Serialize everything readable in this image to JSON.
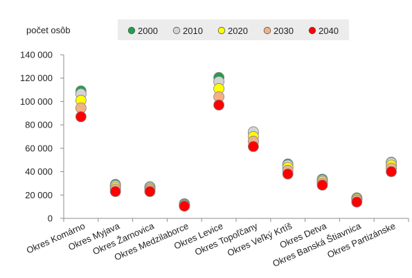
{
  "chart_data": {
    "type": "scatter",
    "title": "",
    "xlabel": "",
    "ylabel": "počet osôb",
    "ylim": [
      0,
      140000
    ],
    "yticks": [
      0,
      20000,
      40000,
      60000,
      80000,
      100000,
      120000,
      140000
    ],
    "ytick_labels": [
      "0",
      "20 000",
      "40 000",
      "60 000",
      "80 000",
      "100 000",
      "120 000",
      "140 000"
    ],
    "grid": false,
    "legend_placement": "top",
    "categories": [
      "Okres Komárno",
      "Okres Myjava",
      "Okres Žarnovica",
      "Okres Medzilaborce",
      "Okres Levice",
      "Okres Topoľčany",
      "Okres Veľký Krtíš",
      "Okres Detva",
      "Okres Banská Štiavnica",
      "Okres Partizánske"
    ],
    "series": [
      {
        "name": "2000",
        "color": "#1fa04a",
        "values": [
          109000,
          29000,
          27000,
          12500,
          120500,
          73500,
          46500,
          33500,
          17500,
          48000
        ]
      },
      {
        "name": "2010",
        "color": "#d4d4d4",
        "values": [
          106500,
          28000,
          26500,
          12000,
          117000,
          74000,
          45500,
          32500,
          17000,
          47500
        ]
      },
      {
        "name": "2020",
        "color": "#ffff00",
        "values": [
          101000,
          26500,
          25500,
          11500,
          111000,
          70000,
          43500,
          31500,
          16500,
          45500
        ]
      },
      {
        "name": "2030",
        "color": "#f4b183",
        "values": [
          94500,
          25000,
          24500,
          11000,
          104000,
          66000,
          41000,
          30000,
          15500,
          43000
        ]
      },
      {
        "name": "2040",
        "color": "#ff0000",
        "values": [
          87000,
          23000,
          23000,
          10500,
          97000,
          61500,
          38000,
          28500,
          14000,
          40000
        ]
      }
    ]
  }
}
